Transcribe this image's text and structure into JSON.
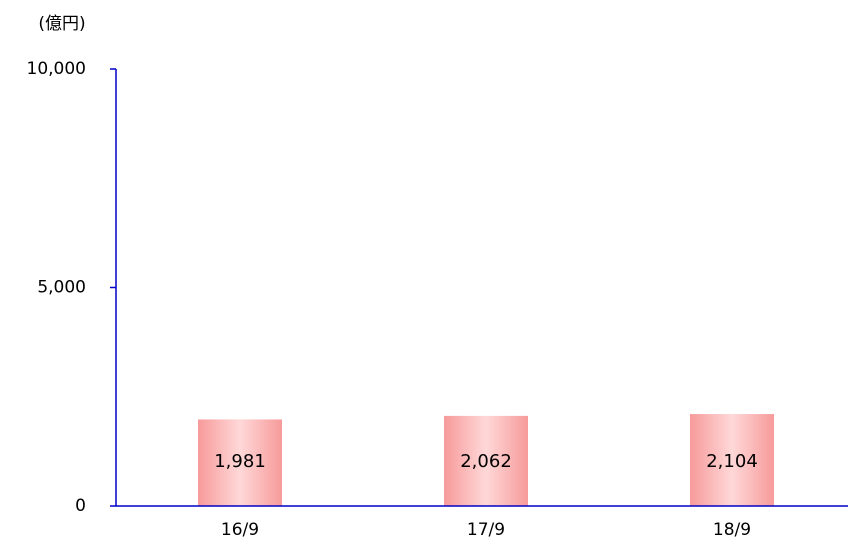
{
  "chart_data": {
    "type": "bar",
    "y_unit": "(億円)",
    "categories": [
      "16/9",
      "17/9",
      "18/9"
    ],
    "values": [
      1981,
      2062,
      2104
    ],
    "value_labels": [
      "1,981",
      "2,062",
      "2,104"
    ],
    "color": "#f79a9a",
    "axis_color": "#0000c8",
    "ylim": [
      0,
      10000
    ],
    "yticks": [
      0,
      {
        "value": 5000,
        "label": "5,000"
      },
      {
        "value": 10000,
        "label": "10,000"
      }
    ],
    "grid": false
  }
}
